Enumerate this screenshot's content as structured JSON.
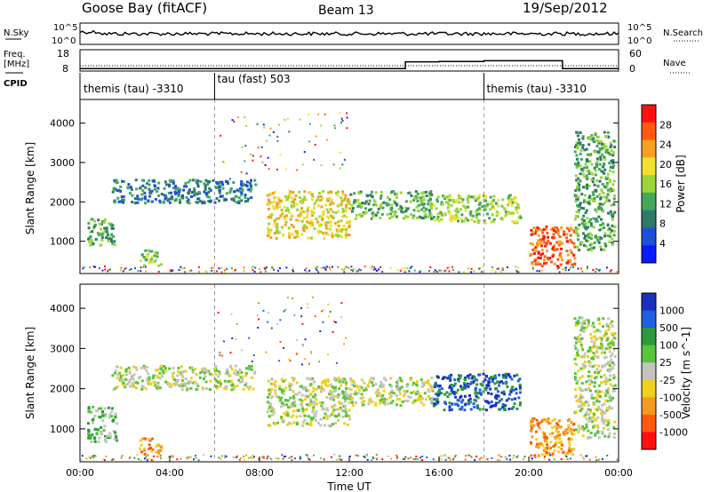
{
  "header": {
    "station": "Goose Bay (fitACF)",
    "beam": "Beam 13",
    "date": "19/Sep/2012"
  },
  "noise_panel": {
    "left_label": "N.Sky",
    "right_label": "N.Search",
    "left_ticks": [
      "10^5",
      "10^0"
    ],
    "right_ticks": [
      "10^5",
      "10^0"
    ]
  },
  "freq_panel": {
    "left_label_line1": "Freq.",
    "left_label_line2": "[MHz]",
    "right_label": "Nave",
    "left_ticks": [
      "18",
      "8"
    ],
    "right_ticks": [
      "60",
      "0"
    ],
    "freq_step_times": [
      0,
      12,
      14.5,
      16,
      18,
      21.5,
      24
    ],
    "freq_levels": [
      10.5,
      10.5,
      10.5,
      10.5,
      10.5,
      10.5
    ],
    "nave_levels": [
      7,
      7,
      26,
      27,
      29,
      7
    ]
  },
  "cpid_panel": {
    "label": "CPID",
    "segments": [
      {
        "name": "themis (tau) -3310",
        "start": 0,
        "end": 6
      },
      {
        "name": "tau (fast) 503",
        "start": 6,
        "end": 18
      },
      {
        "name": "themis (tau) -3310",
        "start": 18,
        "end": 24
      }
    ]
  },
  "chart_data": [
    {
      "type": "heatmap",
      "name": "power",
      "ylabel": "Slant Range [km]",
      "ylim": [
        180,
        4600
      ],
      "yticks": [
        1000,
        2000,
        3000,
        4000
      ],
      "xlim": [
        0,
        24
      ],
      "colorbar_label": "Power [dB]",
      "colorbar_ticks": [
        "28",
        "24",
        "20",
        "16",
        "12",
        "8",
        "4"
      ],
      "colors": [
        "#0a1aff",
        "#1e4fd9",
        "#2f7a66",
        "#43a85c",
        "#9ad63a",
        "#f0e030",
        "#f5a020",
        "#ff5a10",
        "#ff1010"
      ],
      "clusters": [
        {
          "t0": 0.3,
          "t1": 1.6,
          "r0": 900,
          "r1": 1600,
          "level": 3
        },
        {
          "t0": 1.4,
          "t1": 7.8,
          "r0": 2000,
          "r1": 2600,
          "level": 2
        },
        {
          "t0": 8.3,
          "t1": 12.0,
          "r0": 1100,
          "r1": 2300,
          "level": 5
        },
        {
          "t0": 12.0,
          "t1": 15.7,
          "r0": 1600,
          "r1": 2300,
          "level": 3
        },
        {
          "t0": 15.7,
          "t1": 19.6,
          "r0": 1500,
          "r1": 2200,
          "level": 4
        },
        {
          "t0": 20.0,
          "t1": 22.0,
          "r0": 400,
          "r1": 1400,
          "level": 7
        },
        {
          "t0": 22.0,
          "t1": 23.8,
          "r0": 800,
          "r1": 3800,
          "level": 3
        },
        {
          "t0": 2.6,
          "t1": 3.6,
          "r0": 400,
          "r1": 800,
          "level": 4
        }
      ]
    },
    {
      "type": "heatmap",
      "name": "velocity",
      "ylabel": "Slant Range [km]",
      "xlabel": "Time UT",
      "ylim": [
        180,
        4600
      ],
      "yticks": [
        1000,
        2000,
        3000,
        4000
      ],
      "xlim": [
        0,
        24
      ],
      "xticks": [
        "00:00",
        "04:00",
        "08:00",
        "12:00",
        "16:00",
        "20:00",
        "00:00"
      ],
      "colorbar_label": "Velocity [m s^-1]",
      "colorbar_ticks": [
        "1000",
        "500",
        "100",
        "25",
        "-25",
        "-100",
        "-500",
        "-1000"
      ],
      "colors": [
        "#1a2fbf",
        "#1f5fe0",
        "#2a9a3a",
        "#5ac43a",
        "#c4c4bc",
        "#f0d020",
        "#f59a20",
        "#ff5a10",
        "#ff1010"
      ],
      "clusters": [
        {
          "t0": 0.3,
          "t1": 1.6,
          "r0": 700,
          "r1": 1600,
          "level": 3
        },
        {
          "t0": 1.4,
          "t1": 7.8,
          "r0": 2000,
          "r1": 2600,
          "level": 4
        },
        {
          "t0": 8.3,
          "t1": 12.0,
          "r0": 1100,
          "r1": 2300,
          "level": 4
        },
        {
          "t0": 12.0,
          "t1": 15.7,
          "r0": 1600,
          "r1": 2300,
          "level": 4
        },
        {
          "t0": 15.7,
          "t1": 19.6,
          "r0": 1500,
          "r1": 2400,
          "level": 1
        },
        {
          "t0": 20.0,
          "t1": 22.0,
          "r0": 350,
          "r1": 1300,
          "level": 6
        },
        {
          "t0": 22.0,
          "t1": 23.8,
          "r0": 800,
          "r1": 3800,
          "level": 4
        },
        {
          "t0": 2.6,
          "t1": 3.6,
          "r0": 400,
          "r1": 800,
          "level": 6
        }
      ]
    }
  ]
}
